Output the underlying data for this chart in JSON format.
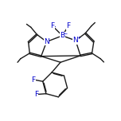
{
  "background_color": "#ffffff",
  "bond_color": "#1a1a1a",
  "bond_width": 1.0,
  "figsize": [
    1.52,
    1.52
  ],
  "dpi": 100,
  "atom_colors": {
    "B": "#0000cc",
    "N": "#0000cc",
    "F": "#0000cc",
    "C": "#1a1a1a"
  },
  "font_size_atoms": 6.5
}
